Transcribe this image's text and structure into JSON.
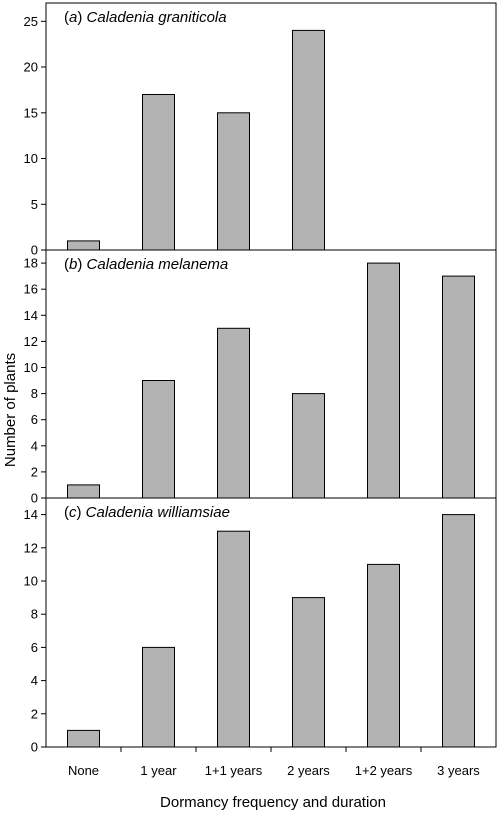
{
  "chart_data": {
    "type": "bar",
    "ylabel": "Number of plants",
    "xlabel": "Dormancy frequency and duration",
    "categories": [
      "None",
      "1 year",
      "1+1 years",
      "2 years",
      "1+2 years",
      "3 years"
    ],
    "bar_color": "#b3b3b3",
    "panels": [
      {
        "tag": "(a)",
        "species": "Caladenia graniticola",
        "ylim": [
          0,
          27
        ],
        "yticks": [
          0,
          5,
          10,
          15,
          20,
          25
        ],
        "values": [
          1,
          17,
          15,
          24,
          null,
          null
        ]
      },
      {
        "tag": "(b)",
        "species": "Caladenia melanema",
        "ylim": [
          0,
          19
        ],
        "yticks": [
          0,
          2,
          4,
          6,
          8,
          10,
          12,
          14,
          16,
          18
        ],
        "values": [
          1,
          9,
          13,
          8,
          18,
          17
        ]
      },
      {
        "tag": "(c)",
        "species": "Caladenia williamsiae",
        "ylim": [
          0,
          15
        ],
        "yticks": [
          0,
          2,
          4,
          6,
          8,
          10,
          12,
          14
        ],
        "values": [
          1,
          6,
          13,
          9,
          11,
          14
        ]
      }
    ]
  }
}
